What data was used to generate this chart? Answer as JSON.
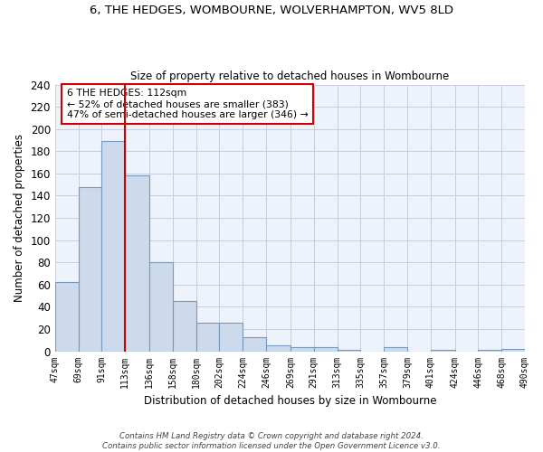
{
  "title_line1": "6, THE HEDGES, WOMBOURNE, WOLVERHAMPTON, WV5 8LD",
  "title_line2": "Size of property relative to detached houses in Wombourne",
  "xlabel": "Distribution of detached houses by size in Wombourne",
  "ylabel": "Number of detached properties",
  "bar_color": "#ccdaec",
  "bar_edge_color": "#7799bb",
  "annotation_text": "6 THE HEDGES: 112sqm\n← 52% of detached houses are smaller (383)\n47% of semi-detached houses are larger (346) →",
  "footer_line1": "Contains HM Land Registry data © Crown copyright and database right 2024.",
  "footer_line2": "Contains public sector information licensed under the Open Government Licence v3.0.",
  "ref_line_x": 113,
  "bin_edges": [
    47,
    69,
    91,
    113,
    136,
    158,
    180,
    202,
    224,
    246,
    269,
    291,
    313,
    335,
    357,
    379,
    401,
    424,
    446,
    468,
    490
  ],
  "bin_counts": [
    62,
    148,
    189,
    158,
    80,
    45,
    26,
    26,
    13,
    5,
    4,
    4,
    1,
    0,
    4,
    0,
    1,
    0,
    1,
    2
  ],
  "xlim": [
    47,
    490
  ],
  "ylim": [
    0,
    240
  ],
  "yticks": [
    0,
    20,
    40,
    60,
    80,
    100,
    120,
    140,
    160,
    180,
    200,
    220,
    240
  ],
  "background_color": "#eef2fb",
  "grid_color": "#c8cce0",
  "red_line_color": "#cc0000",
  "annotation_box_facecolor": "#ffffff",
  "annotation_box_edge": "#cc0000",
  "fig_facecolor": "#ffffff"
}
